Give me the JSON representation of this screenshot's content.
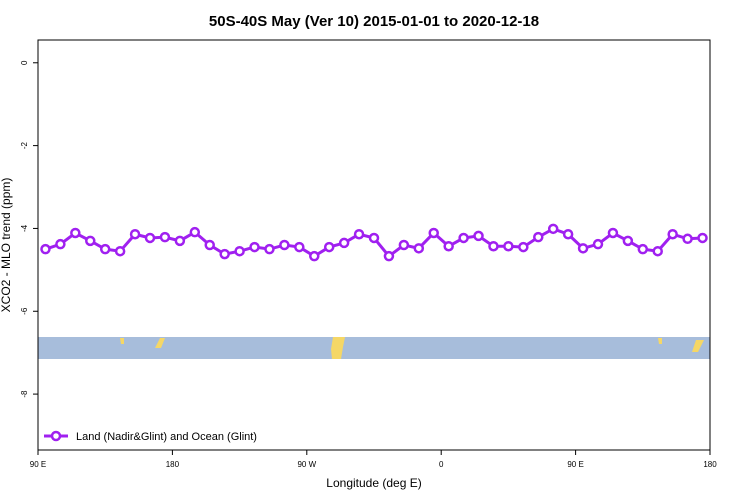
{
  "chart_data": {
    "type": "line",
    "title": "50S-40S May (Ver 10)   2015-01-01 to 2020-12-18",
    "xlabel": "Longitude (deg E)",
    "ylabel": "XCO2 - MLO trend (ppm)",
    "x": [
      95,
      105,
      115,
      125,
      135,
      145,
      155,
      165,
      175,
      185,
      195,
      205,
      215,
      225,
      235,
      245,
      255,
      265,
      275,
      285,
      295,
      305,
      315,
      325,
      335,
      345,
      355,
      365,
      375,
      385,
      395,
      405,
      415,
      425,
      435,
      445,
      455,
      465,
      475,
      485,
      495,
      505,
      515,
      525,
      535
    ],
    "series": [
      {
        "name": "Land (Nadir&Glint) and Ocean (Glint)",
        "color": "#a020f0",
        "values": [
          -4.5,
          -4.38,
          -4.11,
          -4.3,
          -4.5,
          -4.55,
          -4.14,
          -4.23,
          -4.21,
          -4.3,
          -4.09,
          -4.4,
          -4.62,
          -4.55,
          -4.45,
          -4.5,
          -4.4,
          -4.45,
          -4.67,
          -4.45,
          -4.35,
          -4.14,
          -4.23,
          -4.67,
          -4.4,
          -4.48,
          -4.11,
          -4.43,
          -4.23,
          -4.18,
          -4.43,
          -4.43,
          -4.45,
          -4.21,
          -4.01,
          -4.14,
          -4.48,
          -4.38,
          -4.11,
          -4.3,
          -4.5,
          -4.55,
          -4.14,
          -4.25,
          -4.23
        ]
      }
    ],
    "xlim": [
      90,
      540
    ],
    "xticks": [
      {
        "value": 90,
        "label": "90 E"
      },
      180,
      {
        "value": 270,
        "label": "90 W"
      },
      {
        "value": 360,
        "label": "0"
      },
      {
        "value": 450,
        "label": "90 E"
      },
      {
        "value": 540,
        "label": "180"
      }
    ],
    "ylim": [
      -9.35,
      0.55
    ],
    "yticks": [
      0,
      -2,
      -4,
      -6,
      -8
    ],
    "legend": "bottom-left"
  }
}
